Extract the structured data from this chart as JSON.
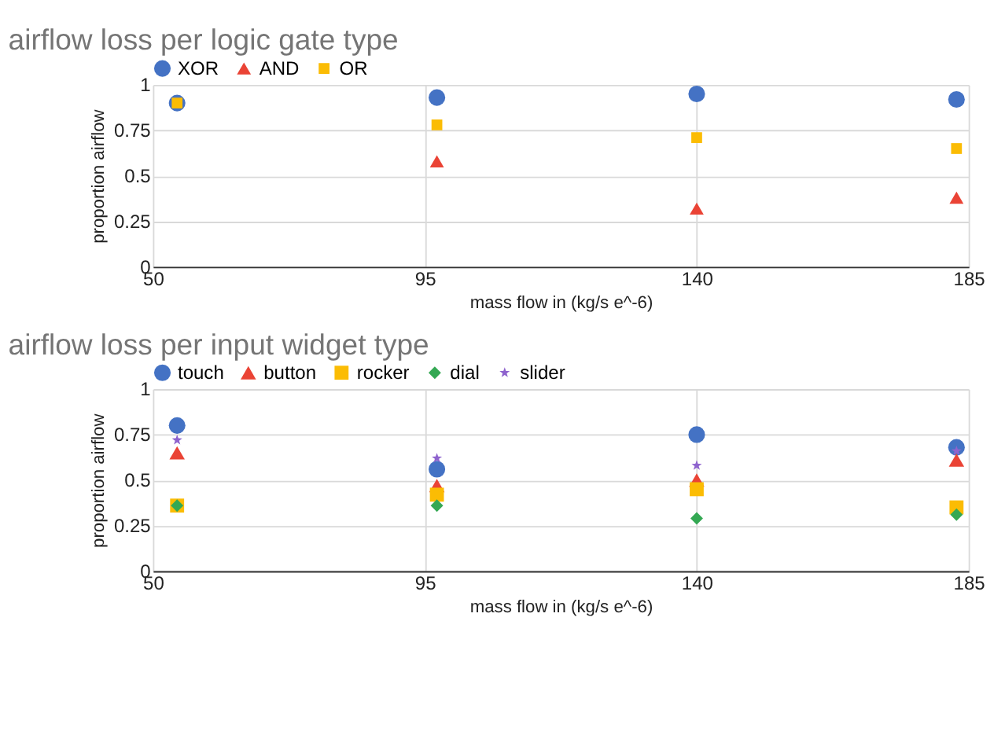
{
  "chart_data": [
    {
      "type": "scatter",
      "title": "airflow loss per logic gate type",
      "xlabel": "mass flow in (kg/s e^-6)",
      "ylabel": "proportion airflow",
      "x": [
        54,
        97,
        140,
        183
      ],
      "xlim": [
        50,
        185
      ],
      "xticks": [
        50,
        95,
        140,
        185
      ],
      "ylim": [
        0,
        1
      ],
      "yticks": [
        0,
        0.25,
        0.5,
        0.75,
        1
      ],
      "grid": true,
      "legend": "top",
      "series": [
        {
          "name": "XOR",
          "color": "#4472c4",
          "marker": "circle",
          "values": [
            0.9,
            0.93,
            0.95,
            0.92
          ]
        },
        {
          "name": "AND",
          "color": "#ea4335",
          "marker": "triangle",
          "values": [
            null,
            0.58,
            0.32,
            0.38
          ]
        },
        {
          "name": "OR",
          "color": "#fbbc04",
          "marker": "square",
          "values": [
            0.9,
            0.78,
            0.71,
            0.65
          ]
        }
      ]
    },
    {
      "type": "scatter",
      "title": "airflow loss per input widget type",
      "xlabel": "mass flow in (kg/s e^-6)",
      "ylabel": "proportion airflow",
      "x": [
        54,
        97,
        140,
        183
      ],
      "xlim": [
        50,
        185
      ],
      "xticks": [
        50,
        95,
        140,
        185
      ],
      "ylim": [
        0,
        1
      ],
      "yticks": [
        0,
        0.25,
        0.5,
        0.75,
        1
      ],
      "grid": true,
      "legend": "top",
      "series": [
        {
          "name": "touch",
          "color": "#4472c4",
          "marker": "circle",
          "values": [
            0.8,
            0.56,
            0.75,
            0.68
          ]
        },
        {
          "name": "button",
          "color": "#ea4335",
          "marker": "triangle",
          "values": [
            0.65,
            0.47,
            0.5,
            0.61
          ]
        },
        {
          "name": "rocker",
          "color": "#fbbc04",
          "marker": "square",
          "values": [
            0.36,
            0.42,
            0.45,
            0.35
          ]
        },
        {
          "name": "dial",
          "color": "#34a853",
          "marker": "diamond",
          "values": [
            0.36,
            0.36,
            0.29,
            0.31
          ]
        },
        {
          "name": "slider",
          "color": "#8e63ce",
          "marker": "star",
          "values": [
            0.72,
            0.62,
            0.58,
            0.66
          ]
        }
      ]
    }
  ]
}
